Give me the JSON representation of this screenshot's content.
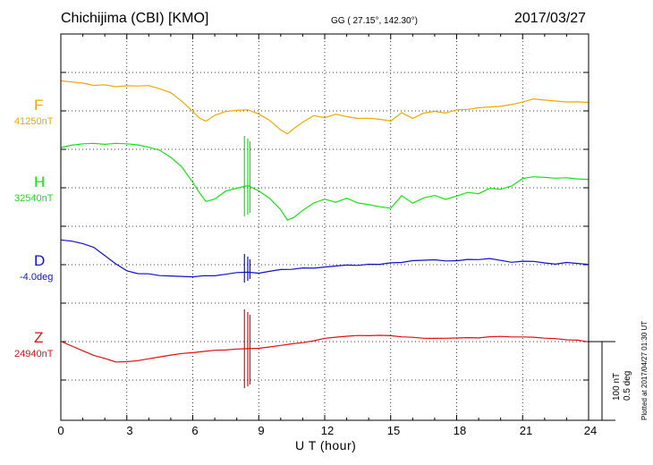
{
  "header": {
    "title_left": "Chichijima (CBI)  [KMO]",
    "title_mid": "GG ( 27.15°, 142.30°)",
    "title_right": "2017/03/27"
  },
  "footer": {
    "xlabel": "U T (hour)",
    "plotted": "Plotted at 2017/04/27 01:30 UT",
    "scale_nt": "100 nT",
    "scale_deg": "0.5 deg"
  },
  "colors": {
    "F": "#f0a800",
    "H": "#18e018",
    "D": "#1010d0",
    "Z": "#e01010"
  },
  "chart_data": {
    "type": "line",
    "title": "Chichijima (CBI)  [KMO]",
    "xlabel": "U T (hour)",
    "xlim": [
      0,
      24
    ],
    "x_ticks": [
      0,
      3,
      6,
      9,
      12,
      15,
      18,
      21,
      24
    ],
    "x_tick_labels": [
      "0",
      "3",
      "6",
      "9",
      "12",
      "15",
      "18",
      "21",
      "24"
    ],
    "grid": true,
    "scale_bar": {
      "nT": 100,
      "deg": 0.5
    },
    "series": [
      {
        "name": "F",
        "baseline_label": "41250nT",
        "baseline": 41250,
        "unit": "nT",
        "x": [
          0,
          0.5,
          1,
          1.5,
          2,
          2.5,
          3,
          3.5,
          4,
          4.5,
          5,
          5.5,
          6,
          6.3,
          6.6,
          7,
          7.5,
          8,
          8.5,
          9,
          9.5,
          10,
          10.3,
          10.6,
          11,
          11.5,
          12,
          12.5,
          13,
          13.5,
          14,
          14.5,
          15,
          15.5,
          16,
          16.5,
          17,
          17.5,
          18,
          18.5,
          19,
          19.5,
          20,
          20.5,
          21,
          21.5,
          22,
          22.5,
          23,
          23.5,
          24
        ],
        "values": [
          42,
          41,
          40,
          37,
          38,
          35,
          36,
          35,
          35,
          30,
          24,
          12,
          -2,
          -11,
          -15,
          -6,
          0,
          2,
          3,
          -3,
          -12,
          -26,
          -32,
          -25,
          -17,
          -8,
          -11,
          -6,
          -9,
          -11,
          -10,
          -11,
          -13,
          -1,
          -9,
          -2,
          0,
          -3,
          1,
          1,
          3,
          4,
          5,
          8,
          12,
          17,
          16,
          15,
          14,
          14,
          13
        ]
      },
      {
        "name": "H",
        "baseline_label": "32540nT",
        "baseline": 32540,
        "unit": "nT",
        "x": [
          0,
          0.5,
          1,
          1.5,
          2,
          2.5,
          3,
          3.5,
          4,
          4.5,
          5,
          5.5,
          6,
          6.3,
          6.6,
          7,
          7.5,
          8,
          8.5,
          9,
          9.5,
          10,
          10.3,
          10.6,
          11,
          11.5,
          12,
          12.5,
          13,
          13.5,
          14,
          14.5,
          15,
          15.5,
          16,
          16.5,
          17,
          17.5,
          18,
          18.5,
          19,
          19.5,
          20,
          20.5,
          21,
          21.5,
          22,
          22.5,
          23,
          23.5,
          24
        ],
        "values": [
          55,
          58,
          60,
          61,
          60,
          62,
          62,
          61,
          58,
          54,
          44,
          30,
          8,
          -7,
          -20,
          -17,
          -6,
          -2,
          2,
          -5,
          -15,
          -30,
          -44,
          -40,
          -30,
          -20,
          -15,
          -20,
          -15,
          -22,
          -25,
          -28,
          -30,
          -12,
          -22,
          -14,
          -10,
          -15,
          -10,
          -5,
          -7,
          0,
          -2,
          2,
          12,
          14,
          13,
          12,
          13,
          12,
          12
        ]
      },
      {
        "name": "D",
        "baseline_label": "-4.0deg",
        "baseline": -4.0,
        "unit": "deg",
        "x": [
          0,
          0.5,
          1,
          1.5,
          2,
          2.5,
          3,
          3.5,
          4,
          4.5,
          5,
          5.5,
          6,
          6.5,
          7,
          7.5,
          8,
          8.5,
          9,
          9.5,
          10,
          10.5,
          11,
          11.5,
          12,
          12.5,
          13,
          13.5,
          14,
          14.5,
          15,
          15.5,
          16,
          16.5,
          17,
          17.5,
          18,
          18.5,
          19,
          19.5,
          20,
          20.5,
          21,
          21.5,
          22,
          22.5,
          23,
          23.5,
          24
        ],
        "values": [
          0.18,
          0.17,
          0.15,
          0.12,
          0.06,
          0,
          -0.05,
          -0.07,
          -0.07,
          -0.08,
          -0.08,
          -0.08,
          -0.08,
          -0.07,
          -0.07,
          -0.06,
          -0.05,
          -0.05,
          -0.06,
          -0.05,
          -0.04,
          -0.04,
          -0.03,
          -0.03,
          -0.02,
          -0.01,
          0,
          0,
          0.01,
          0.01,
          0.02,
          0.02,
          0.03,
          0.03,
          0.03,
          0.02,
          0.02,
          0.03,
          0.03,
          0.04,
          0.03,
          0.02,
          0.03,
          0.03,
          0.02,
          0.01,
          0.02,
          0.01,
          0.0
        ]
      },
      {
        "name": "Z",
        "baseline_label": "24940nT",
        "baseline": 24940,
        "unit": "nT",
        "x": [
          0,
          0.5,
          1,
          1.5,
          2,
          2.5,
          3,
          3.5,
          4,
          4.5,
          5,
          5.5,
          6,
          6.5,
          7,
          7.5,
          8,
          8.5,
          9,
          9.5,
          10,
          10.5,
          11,
          11.5,
          12,
          12.5,
          13,
          13.5,
          14,
          14.5,
          15,
          15.5,
          16,
          16.5,
          17,
          17.5,
          18,
          18.5,
          19,
          19.5,
          20,
          20.5,
          21,
          21.5,
          22,
          22.5,
          23,
          23.5,
          24
        ],
        "values": [
          0,
          -6,
          -12,
          -18,
          -22,
          -27,
          -27,
          -26,
          -24,
          -22,
          -20,
          -18,
          -17,
          -15,
          -13,
          -12,
          -10,
          -9,
          -8,
          -6,
          -4,
          -2,
          -1,
          1,
          4,
          5,
          6,
          7,
          7,
          8,
          8,
          7,
          7,
          6,
          6,
          6,
          6,
          6,
          5,
          6,
          6,
          5,
          5,
          5,
          4,
          4,
          3,
          3,
          1
        ]
      }
    ]
  }
}
